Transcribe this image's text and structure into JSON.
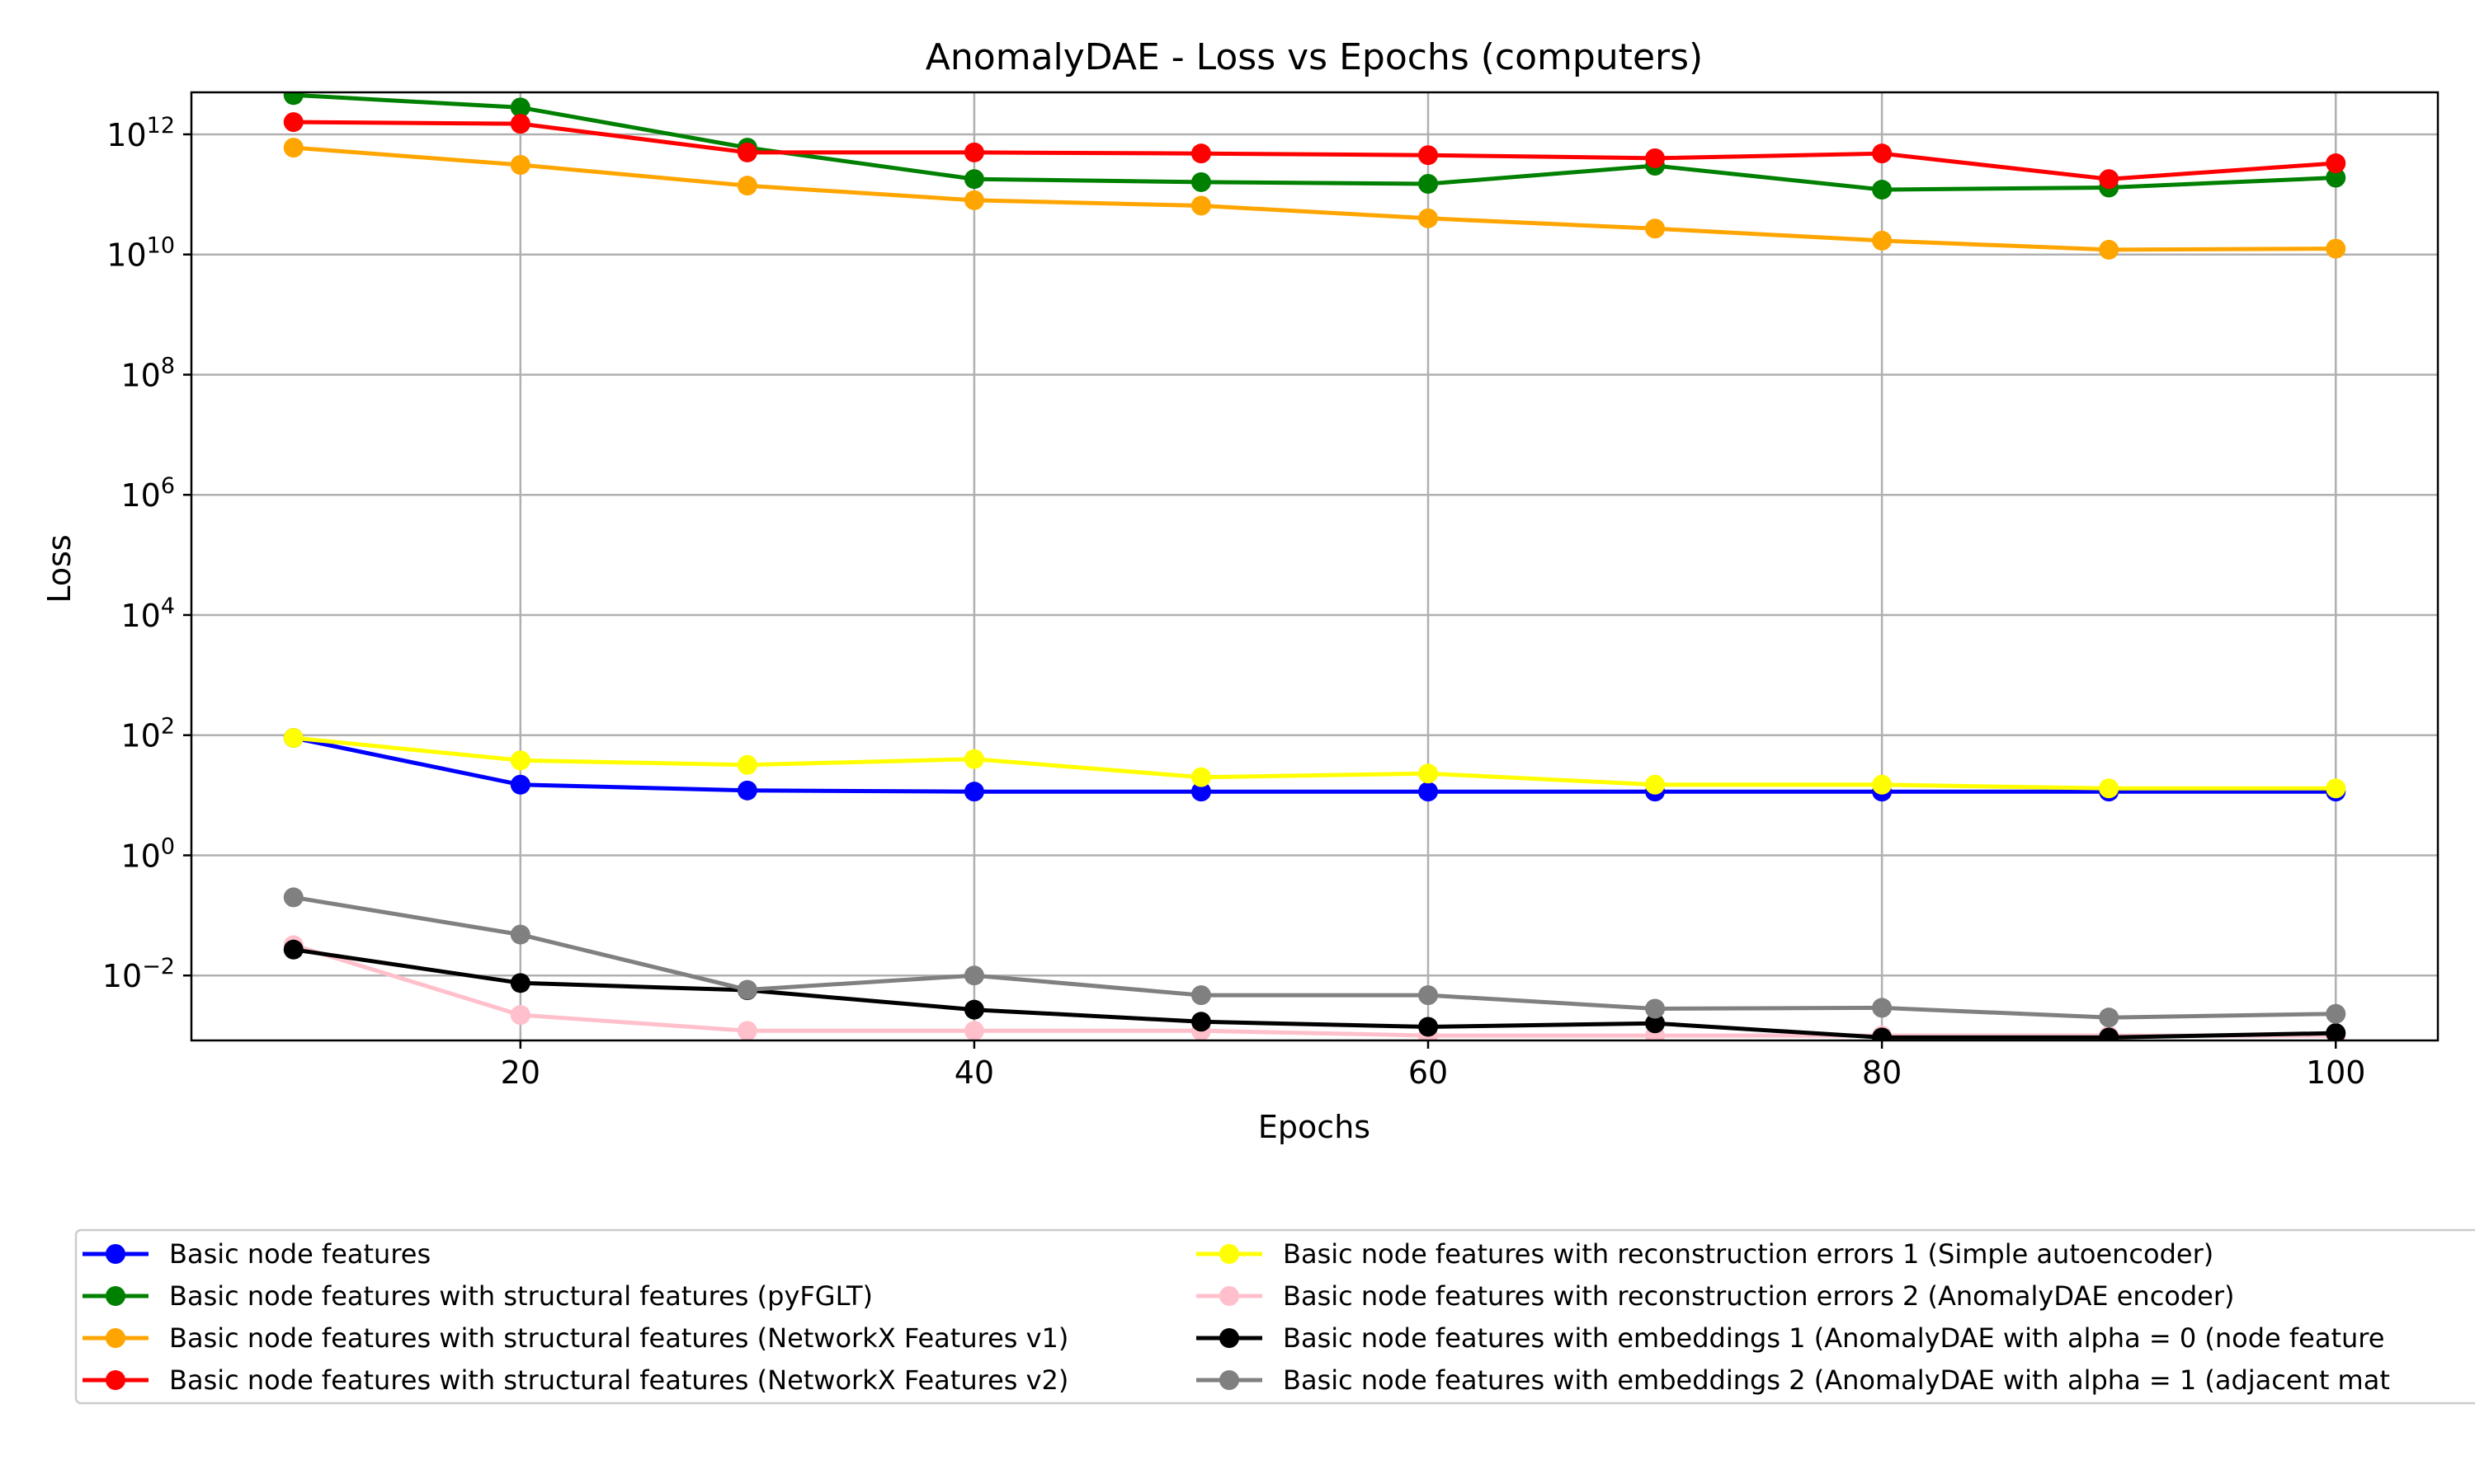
{
  "chart_data": {
    "type": "line",
    "title": "AnomalyDAE - Loss vs Epochs (computers)",
    "xlabel": "Epochs",
    "ylabel": "Loss",
    "yscale": "log",
    "xlim": [
      5.5,
      104.5
    ],
    "ylim": [
      0.00083,
      5000000000000
    ],
    "x_ticks": [
      20,
      40,
      60,
      80,
      100
    ],
    "y_ticks": [
      {
        "value": 0.01,
        "base": "10",
        "exp": "−2"
      },
      {
        "value": 1,
        "base": "10",
        "exp": "0"
      },
      {
        "value": 100,
        "base": "10",
        "exp": "2"
      },
      {
        "value": 10000,
        "base": "10",
        "exp": "4"
      },
      {
        "value": 1000000,
        "base": "10",
        "exp": "6"
      },
      {
        "value": 100000000,
        "base": "10",
        "exp": "8"
      },
      {
        "value": 10000000000,
        "base": "10",
        "exp": "10"
      },
      {
        "value": 1000000000000,
        "base": "10",
        "exp": "12"
      }
    ],
    "grid": true,
    "legend_position": "bottom",
    "x": [
      10,
      20,
      30,
      40,
      50,
      60,
      70,
      80,
      90,
      100
    ],
    "series": [
      {
        "name": "Basic node features",
        "color": "#0000ff",
        "values": [
          90,
          15,
          12,
          11.5,
          11.5,
          11.5,
          11.5,
          11.5,
          11.5,
          11.5
        ]
      },
      {
        "name": "Basic node features with structural features (pyFGLT)",
        "color": "#008000",
        "values": [
          4500000000000,
          2800000000000,
          600000000000,
          180000000000,
          160000000000,
          150000000000,
          300000000000,
          120000000000,
          130000000000,
          190000000000
        ]
      },
      {
        "name": "Basic node features with structural features (NetworkX Features v1)",
        "color": "#ffa500",
        "values": [
          600000000000,
          310000000000,
          140000000000,
          80000000000,
          65000000000,
          40000000000,
          27000000000,
          17000000000,
          12000000000,
          12500000000
        ]
      },
      {
        "name": "Basic node features with structural features (NetworkX Features v2)",
        "color": "#ff0000",
        "values": [
          1600000000000,
          1500000000000,
          500000000000,
          500000000000,
          480000000000,
          450000000000,
          400000000000,
          480000000000,
          180000000000,
          330000000000
        ]
      },
      {
        "name": "Basic node features with reconstruction errors 1 (Simple autoencoder)",
        "color": "#ffff00",
        "values": [
          90,
          38,
          32,
          40,
          20,
          23,
          15,
          15,
          13,
          13
        ]
      },
      {
        "name": "Basic node features with reconstruction errors 2 (AnomalyDAE encoder)",
        "color": "#ffc0cb",
        "values": [
          0.032,
          0.0022,
          0.0012,
          0.0012,
          0.0012,
          0.001,
          0.001,
          0.001,
          0.001,
          0.001
        ]
      },
      {
        "name": "Basic node features with embeddings 1 (AnomalyDAE with alpha = 0 (node feature",
        "color": "#000000",
        "values": [
          0.027,
          0.0075,
          0.0057,
          0.0027,
          0.0017,
          0.0014,
          0.0016,
          0.00093,
          0.00093,
          0.0011
        ]
      },
      {
        "name": "Basic node features with embeddings 2 (AnomalyDAE with alpha = 1 (adjacent mat",
        "color": "#808080",
        "values": [
          0.2,
          0.048,
          0.0058,
          0.01,
          0.0047,
          0.0047,
          0.0028,
          0.0029,
          0.002,
          0.0023
        ]
      }
    ]
  }
}
